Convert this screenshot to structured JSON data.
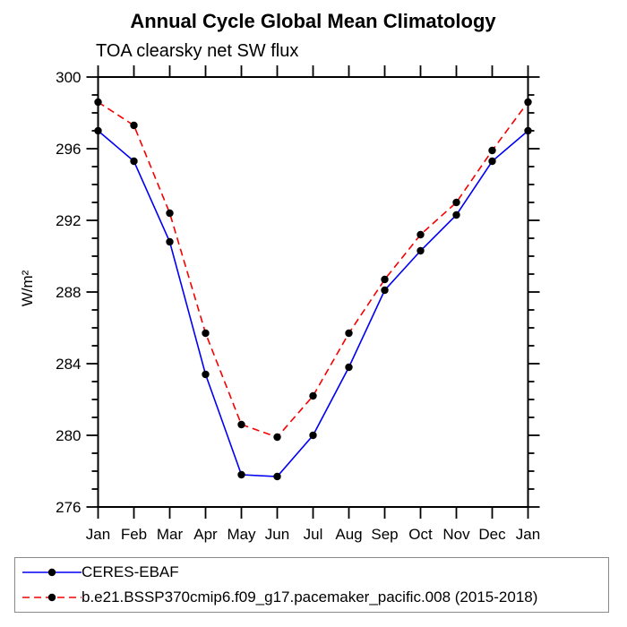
{
  "chart_data": {
    "type": "line",
    "title": "Annual Cycle Global Mean Climatology",
    "subtitle": "TOA clearsky net SW flux",
    "ylabel": "W/m²",
    "x_categories": [
      "Jan",
      "Feb",
      "Mar",
      "Apr",
      "May",
      "Jun",
      "Jul",
      "Aug",
      "Sep",
      "Oct",
      "Nov",
      "Dec",
      "Jan"
    ],
    "ylim": [
      276,
      300
    ],
    "ytick_major": [
      276,
      280,
      284,
      288,
      292,
      296,
      300
    ],
    "ytick_minor_step": 1,
    "grid": false,
    "legend_position": "bottom",
    "series": [
      {
        "name": "CERES-EBAF",
        "color": "#0000f5",
        "line_style": "solid",
        "marker": "circle",
        "marker_color": "#000000",
        "values": [
          297.0,
          295.3,
          290.8,
          283.4,
          277.8,
          277.7,
          280.0,
          283.8,
          288.1,
          290.3,
          292.3,
          295.3,
          297.0
        ]
      },
      {
        "name": "b.e21.BSSP370cmip6.f09_g17.pacemaker_pacific.008 (2015-2018)",
        "color": "#f50000",
        "line_style": "dashed",
        "marker": "circle",
        "marker_color": "#000000",
        "values": [
          298.6,
          297.3,
          292.4,
          285.7,
          280.6,
          279.9,
          282.2,
          285.7,
          288.7,
          291.2,
          293.0,
          295.9,
          298.6
        ]
      }
    ],
    "axis_color": "#000000"
  }
}
